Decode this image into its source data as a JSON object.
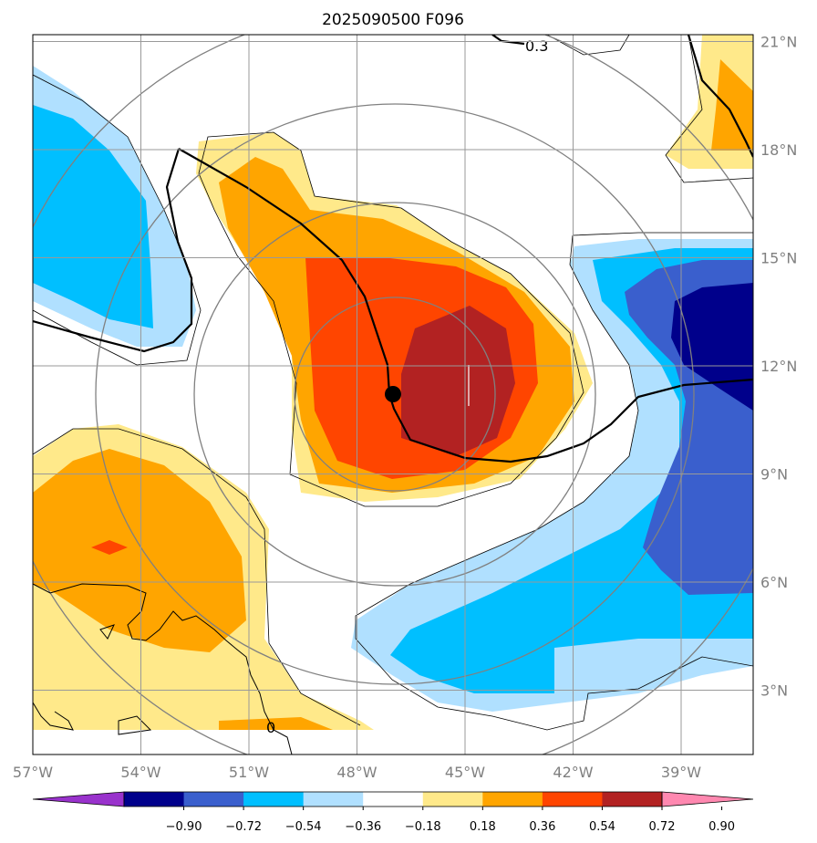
{
  "title": "2025090500 F096",
  "map": {
    "lon_range": [
      -57,
      -37.5
    ],
    "lat_range": [
      1.5,
      21.2
    ],
    "lon_ticks": [
      {
        "value": -57,
        "label": "57°W"
      },
      {
        "value": -54,
        "label": "54°W"
      },
      {
        "value": -51,
        "label": "51°W"
      },
      {
        "value": -48,
        "label": "48°W"
      },
      {
        "value": -45,
        "label": "45°W"
      },
      {
        "value": -42,
        "label": "42°W"
      },
      {
        "value": -39,
        "label": "39°W"
      }
    ],
    "lat_ticks": [
      {
        "value": 21,
        "label": "21°N"
      },
      {
        "value": 18,
        "label": "18°N"
      },
      {
        "value": 15,
        "label": "15°N"
      },
      {
        "value": 12,
        "label": "12°N"
      },
      {
        "value": 9,
        "label": "9°N"
      },
      {
        "value": 6,
        "label": "6°N"
      },
      {
        "value": 3,
        "label": "3°N"
      }
    ],
    "storm_center": {
      "lon": -47.1,
      "lat": 11.2
    },
    "contour_label": "0.3",
    "coast_label": "0"
  },
  "colorbar": {
    "colors": [
      "#9932cc",
      "#00008b",
      "#3a5fcd",
      "#00bfff",
      "#b0e0ff",
      "#ffffff",
      "#ffe98a",
      "#ffa500",
      "#ff4500",
      "#b22222",
      "#ff88b0"
    ],
    "labels": [
      "−0.90",
      "−0.72",
      "−0.54",
      "−0.36",
      "−0.18",
      "0.18",
      "0.36",
      "0.54",
      "0.72",
      "0.90"
    ]
  }
}
